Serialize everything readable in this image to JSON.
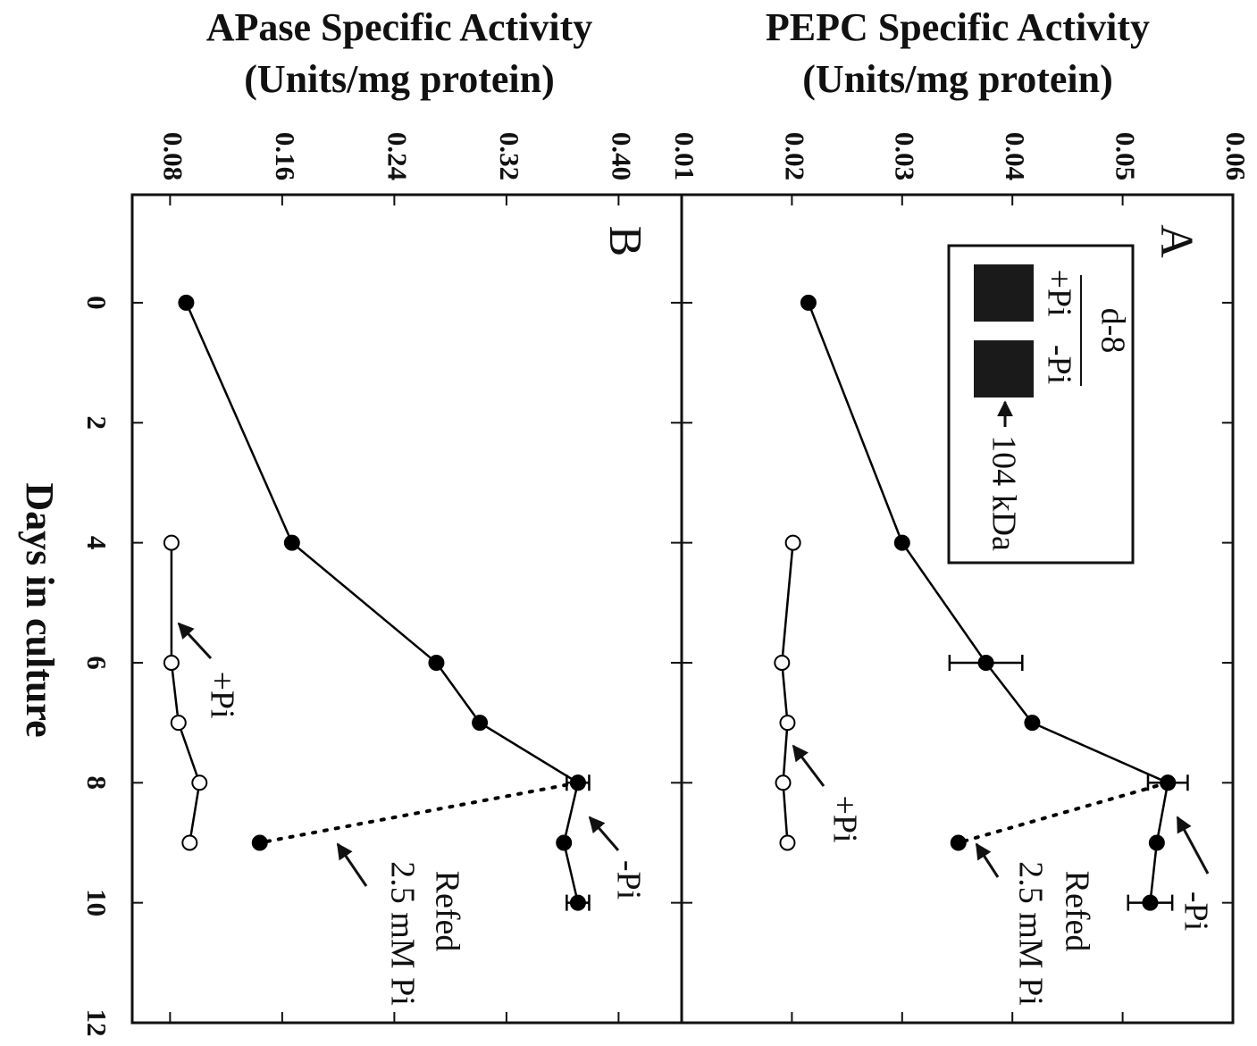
{
  "chart_data": [
    {
      "type": "line",
      "panel_label": "A",
      "ylabel": [
        "PEPC Specific Activity",
        "(Units/mg  protein)"
      ],
      "xlim": [
        -1.8,
        12
      ],
      "xticks": [
        0,
        2,
        4,
        6,
        8,
        10,
        12
      ],
      "ylim": [
        0.01,
        0.06
      ],
      "yticks": [
        0.01,
        0.02,
        0.03,
        0.04,
        0.05,
        0.06
      ],
      "series": [
        {
          "marker": "filled",
          "style": "solid",
          "color": "#000000",
          "x": [
            0,
            4,
            6,
            7,
            8,
            9,
            10
          ],
          "values": [
            0.0215,
            0.03,
            0.0376,
            0.0418,
            0.0541,
            0.0531,
            0.0525
          ],
          "errors": [
            null,
            null,
            0.0033,
            null,
            0.0018,
            null,
            0.002
          ]
        },
        {
          "marker": "open",
          "style": "solid",
          "color": "#000000",
          "x": [
            4,
            6,
            7,
            8,
            9
          ],
          "values": [
            0.0201,
            0.0191,
            0.0196,
            0.0192,
            0.0196
          ]
        },
        {
          "marker": "filled",
          "style": "dotted",
          "color": "#000000",
          "x": [
            8,
            9
          ],
          "values": [
            0.0541,
            0.0351
          ]
        }
      ],
      "annotations": [
        "-Pi",
        "+Pi",
        "Refed",
        "2.5 mM Pi"
      ],
      "inset": {
        "title": "d-8",
        "lanes": [
          "+Pi",
          "-Pi"
        ],
        "marker": "104 kDa"
      }
    },
    {
      "type": "line",
      "panel_label": "B",
      "ylabel": [
        "APase Specific Activity",
        "(Units/mg  protein)"
      ],
      "xlabel": "Days in culture",
      "xlim": [
        -1.8,
        12
      ],
      "xticks": [
        0,
        2,
        4,
        6,
        8,
        10,
        12
      ],
      "ylim": [
        0.053,
        0.445
      ],
      "yticks": [
        0.08,
        0.16,
        0.24,
        0.32,
        {
          "value": 0.4,
          "label": "0.40"
        }
      ],
      "series": [
        {
          "marker": "filled",
          "style": "solid",
          "color": "#000000",
          "x": [
            0,
            4,
            6,
            7,
            8,
            9,
            10
          ],
          "values": [
            0.0915,
            0.167,
            0.27,
            0.301,
            0.371,
            0.361,
            0.371
          ],
          "errors": [
            null,
            null,
            null,
            null,
            0.008,
            null,
            0.008
          ]
        },
        {
          "marker": "open",
          "style": "solid",
          "color": "#000000",
          "x": [
            4,
            6,
            7,
            8,
            9
          ],
          "values": [
            0.081,
            0.081,
            0.086,
            0.101,
            0.094
          ]
        },
        {
          "marker": "filled",
          "style": "dotted",
          "color": "#000000",
          "x": [
            8,
            9
          ],
          "values": [
            0.371,
            0.144
          ]
        }
      ],
      "annotations": [
        "-Pi",
        "+Pi",
        "Refed",
        "2.5 mM Pi"
      ]
    }
  ]
}
